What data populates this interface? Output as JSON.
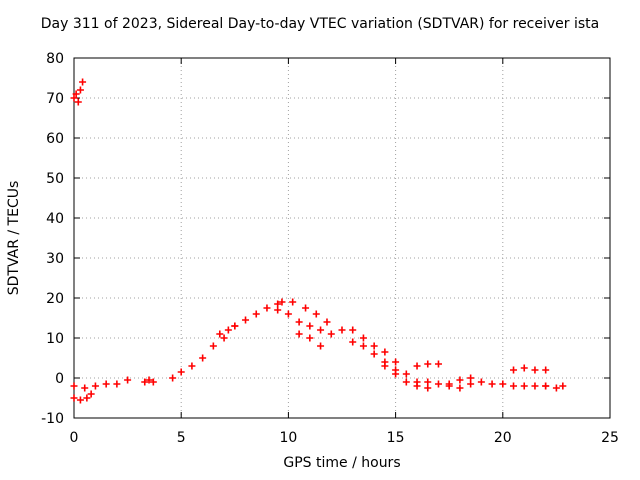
{
  "chart_data": {
    "type": "scatter",
    "title": "Day 311 of 2023, Sidereal Day-to-day VTEC variation (SDTVAR) for receiver ista",
    "xlabel": "GPS time / hours",
    "ylabel": "SDTVAR / TECUs",
    "xlim": [
      0,
      25
    ],
    "ylim": [
      -10,
      80
    ],
    "xticks": [
      0,
      5,
      10,
      15,
      20,
      25
    ],
    "yticks": [
      -10,
      0,
      10,
      20,
      30,
      40,
      50,
      60,
      70,
      80
    ],
    "grid": true,
    "marker": "+",
    "color": "#ff0000",
    "series": [
      {
        "name": "SDTVAR",
        "segments": [
          {
            "x": [
              0.0,
              0.1,
              0.2,
              0.3,
              0.4
            ],
            "y": [
              70,
              71,
              69,
              72,
              74
            ]
          },
          {
            "x": [
              0.0,
              0.3,
              0.6,
              0.8
            ],
            "y": [
              -5,
              -5.5,
              -5,
              -4
            ]
          },
          {
            "x": [
              0.0,
              0.5,
              1.0,
              1.5,
              2.0,
              2.5
            ],
            "y": [
              -2,
              -2.5,
              -2,
              -1.5,
              -1.5,
              -0.5
            ]
          },
          {
            "x": [
              3.3,
              3.5,
              3.7
            ],
            "y": [
              -1,
              -0.5,
              -1
            ]
          },
          {
            "x": [
              4.6,
              5.0,
              5.5,
              6.0,
              6.5,
              7.0
            ],
            "y": [
              0,
              1.5,
              3,
              5,
              8,
              10
            ]
          },
          {
            "x": [
              6.8,
              7.2,
              7.5
            ],
            "y": [
              11,
              12,
              13
            ]
          },
          {
            "x": [
              7.5,
              8.0,
              8.5,
              9.0,
              9.5,
              9.7
            ],
            "y": [
              13,
              14.5,
              16,
              17.5,
              18.5,
              19
            ]
          },
          {
            "x": [
              9.5,
              10.0,
              10.5,
              11.0,
              11.5,
              12.0
            ],
            "y": [
              17,
              16,
              14,
              13,
              12,
              11
            ]
          },
          {
            "x": [
              10.2,
              10.8,
              11.3,
              11.8
            ],
            "y": [
              19,
              17.5,
              16,
              14
            ]
          },
          {
            "x": [
              10.5,
              11.0,
              11.5
            ],
            "y": [
              11,
              10,
              8
            ]
          },
          {
            "x": [
              12.5,
              13.0,
              13.5,
              14.0,
              14.5,
              15.0,
              15.5,
              16.0
            ],
            "y": [
              12,
              12,
              10,
              8,
              6.5,
              4,
              1,
              -1
            ]
          },
          {
            "x": [
              13.0,
              13.5,
              14.0,
              14.5,
              15.0
            ],
            "y": [
              9,
              8,
              6,
              4,
              2
            ]
          },
          {
            "x": [
              14.5,
              15.0,
              15.5,
              16.0,
              16.5
            ],
            "y": [
              3,
              1,
              -1,
              -2,
              -2.5
            ]
          },
          {
            "x": [
              16.0,
              16.5,
              17.0
            ],
            "y": [
              3,
              3.5,
              3.5
            ]
          },
          {
            "x": [
              16.5,
              17.0,
              17.5,
              18.0,
              18.5
            ],
            "y": [
              -1,
              -1.5,
              -1.5,
              -0.5,
              0
            ]
          },
          {
            "x": [
              17.5,
              18.0,
              18.5
            ],
            "y": [
              -2,
              -2.5,
              -1.5
            ]
          },
          {
            "x": [
              19.0,
              19.5,
              20.0,
              20.5,
              21.0,
              21.5,
              22.0
            ],
            "y": [
              -1,
              -1.5,
              -1.5,
              -2,
              -2,
              -2,
              -2
            ]
          },
          {
            "x": [
              20.5,
              21.0,
              21.5,
              22.0
            ],
            "y": [
              2,
              2.5,
              2,
              2
            ]
          },
          {
            "x": [
              22.0,
              22.5,
              22.8
            ],
            "y": [
              -2,
              -2.5,
              -2
            ]
          }
        ]
      }
    ]
  }
}
